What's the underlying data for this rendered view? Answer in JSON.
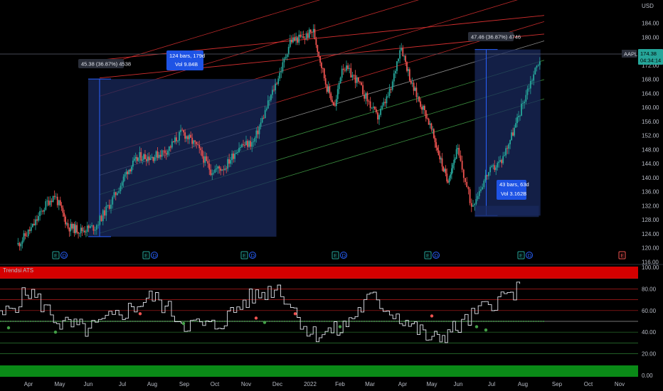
{
  "symbol": "AAPL",
  "currency": "USD",
  "last_price": "174.38",
  "countdown": "04:34:14",
  "colors": {
    "background": "#000000",
    "up": "#26a69a",
    "down": "#ef5350",
    "channel_red": "#d32f2f",
    "channel_green": "#43a047",
    "range_fill": "#1a2a5e",
    "range_border": "#2962ff",
    "price_tag": "#26a69a",
    "label_blue": "#1e53e5"
  },
  "price_axis": {
    "ticks": [
      "184.00",
      "180.00",
      "176.00",
      "172.00",
      "168.00",
      "164.00",
      "160.00",
      "156.00",
      "152.00",
      "148.00",
      "144.00",
      "140.00",
      "136.00",
      "132.00",
      "128.00",
      "124.00",
      "120.00",
      "116.00"
    ]
  },
  "time_axis": {
    "labels": [
      "Apr",
      "May",
      "Jun",
      "Jul",
      "Aug",
      "Sep",
      "Oct",
      "Nov",
      "Dec",
      "2022",
      "Feb",
      "Mar",
      "Apr",
      "May",
      "Jun",
      "Jul",
      "Aug",
      "Sep",
      "Oct",
      "Nov"
    ]
  },
  "earnings_markers": [
    "E",
    "E",
    "E",
    "E",
    "E",
    "E",
    "E"
  ],
  "dividend_marker": "D",
  "annotations": {
    "range1_change": "45.38 (36.87%) 4538",
    "range1_bars": "124 bars, 179d",
    "range1_vol": "Vol 9.84B",
    "range2_change": "47.46 (36.87%) 4746",
    "range2_bars": "43 bars, 63d",
    "range2_vol": "Vol 3.162B"
  },
  "indicator": {
    "name": "Trendsi ATS",
    "ticks": [
      "100.00",
      "80.00",
      "60.00",
      "40.00",
      "20.00",
      "0.00"
    ],
    "zero_marker": "E"
  },
  "chart_data": [
    {
      "type": "candlestick",
      "symbol": "AAPL",
      "y_unit": "USD",
      "ylim": [
        116,
        186
      ],
      "x_range": [
        "2021-03",
        "2022-11"
      ],
      "close_series": [
        [
          "2021-03-22",
          121
        ],
        [
          "2021-04-05",
          126
        ],
        [
          "2021-04-19",
          133
        ],
        [
          "2021-04-26",
          135
        ],
        [
          "2021-05-10",
          126
        ],
        [
          "2021-05-24",
          125
        ],
        [
          "2021-06-07",
          126
        ],
        [
          "2021-06-21",
          133
        ],
        [
          "2021-07-06",
          142
        ],
        [
          "2021-07-19",
          146
        ],
        [
          "2021-08-02",
          146
        ],
        [
          "2021-08-16",
          148
        ],
        [
          "2021-08-30",
          153
        ],
        [
          "2021-09-13",
          149
        ],
        [
          "2021-09-27",
          142
        ],
        [
          "2021-10-11",
          143
        ],
        [
          "2021-10-25",
          149
        ],
        [
          "2021-11-08",
          150
        ],
        [
          "2021-11-22",
          161
        ],
        [
          "2021-12-06",
          172
        ],
        [
          "2021-12-13",
          179
        ],
        [
          "2021-12-27",
          180
        ],
        [
          "2022-01-04",
          182
        ],
        [
          "2022-01-18",
          166
        ],
        [
          "2022-01-27",
          160
        ],
        [
          "2022-02-03",
          172
        ],
        [
          "2022-02-16",
          168
        ],
        [
          "2022-03-08",
          157
        ],
        [
          "2022-03-21",
          165
        ],
        [
          "2022-03-30",
          178
        ],
        [
          "2022-04-11",
          166
        ],
        [
          "2022-04-25",
          158
        ],
        [
          "2022-05-09",
          147
        ],
        [
          "2022-05-19",
          139
        ],
        [
          "2022-05-31",
          148
        ],
        [
          "2022-06-13",
          132
        ],
        [
          "2022-06-27",
          141
        ],
        [
          "2022-07-11",
          145
        ],
        [
          "2022-07-25",
          155
        ],
        [
          "2022-08-05",
          165
        ],
        [
          "2022-08-17",
          174.38
        ]
      ],
      "price_channel": {
        "levels": 8
      },
      "measurements": [
        {
          "from": "2021-06-01",
          "to": "2021-11-30",
          "change": "45.38 (36.87%) 4538",
          "bars": "124 bars, 179d",
          "volume": "Vol 9.84B"
        },
        {
          "from": "2022-06-16",
          "to": "2022-08-17",
          "change": "47.46 (36.87%) 4746",
          "bars": "43 bars, 63d",
          "volume": "Vol 3.162B"
        }
      ]
    },
    {
      "type": "line",
      "name": "Trendsi ATS",
      "ylim": [
        0,
        100
      ],
      "levels": [
        90,
        80,
        70,
        60,
        50,
        40,
        30,
        20
      ],
      "x": [
        "2021-03",
        "2021-04",
        "2021-05",
        "2021-06",
        "2021-07",
        "2021-08",
        "2021-09",
        "2021-10",
        "2021-11",
        "2021-12",
        "2022-01",
        "2022-02",
        "2022-03",
        "2022-04",
        "2022-05",
        "2022-06",
        "2022-07",
        "2022-08"
      ],
      "values": [
        50,
        78,
        48,
        42,
        58,
        73,
        48,
        45,
        70,
        82,
        38,
        42,
        72,
        52,
        32,
        45,
        68,
        80
      ]
    }
  ]
}
